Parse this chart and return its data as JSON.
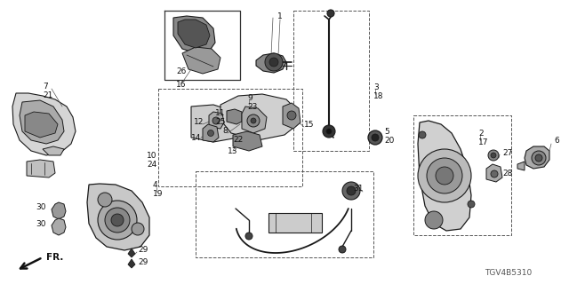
{
  "bg_color": "#ffffff",
  "line_color": "#1a1a1a",
  "diagram_id": "TGV4B5310",
  "figsize": [
    6.4,
    3.2
  ],
  "dpi": 100
}
